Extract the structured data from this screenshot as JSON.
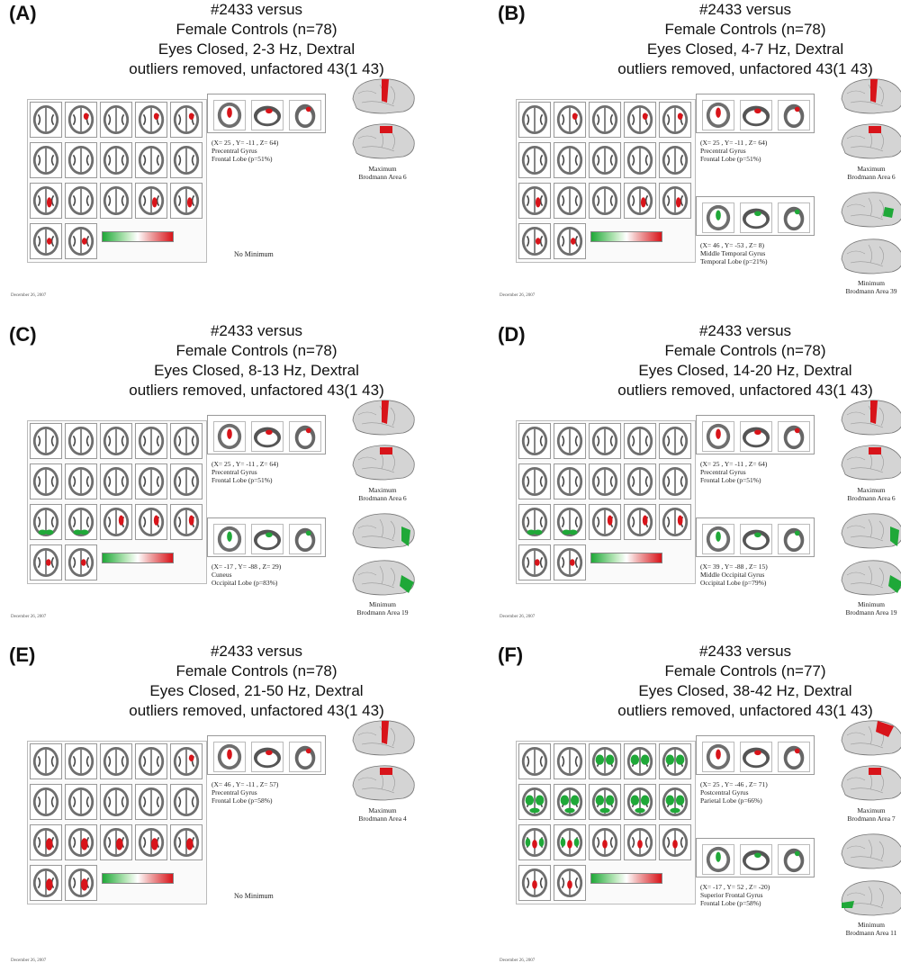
{
  "colors": {
    "activation_high": "#d8141a",
    "activation_low": "#1fa838",
    "brain_gray": "#8a8a8a"
  },
  "panels": [
    {
      "letter": "(A)",
      "title_lines": [
        "#2433 versus",
        "Female Controls (n=78)",
        "Eyes Closed, 2-3 Hz, Dextral",
        "outliers removed, unfactored 43(1 43)"
      ],
      "max": {
        "coords": "(X= 25 , Y= -11 , Z= 64)",
        "gyrus": "Precentral  Gyrus",
        "lobe": "Frontal  Lobe  (p=51%)",
        "caption1": "Maximum",
        "caption2": "Brodmann  Area 6"
      },
      "min": null,
      "no_min_text": "No Minimum",
      "date": "December 26, 2007",
      "blob": "red-few"
    },
    {
      "letter": "(B)",
      "title_lines": [
        "#2433 versus",
        "Female Controls (n=78)",
        "Eyes Closed, 4-7 Hz, Dextral",
        "outliers removed, unfactored 43(1 43)"
      ],
      "max": {
        "coords": "(X= 25 , Y= -11 , Z= 64)",
        "gyrus": "Precentral  Gyrus",
        "lobe": "Frontal  Lobe  (p=51%)",
        "caption1": "Maximum",
        "caption2": "Brodmann  Area 6"
      },
      "min": {
        "coords": "(X= 46 , Y= -53 , Z= 8)",
        "gyrus": "Middle  Temporal  Gyrus",
        "lobe": "Temporal  Lobe  (p=21%)",
        "caption1": "Minimum",
        "caption2": "Brodmann  Area 39"
      },
      "no_min_text": "",
      "date": "December 26, 2007",
      "blob": "red-few"
    },
    {
      "letter": "(C)",
      "title_lines": [
        "#2433 versus",
        "Female Controls (n=78)",
        "Eyes Closed, 8-13 Hz, Dextral",
        "outliers removed, unfactored 43(1 43)"
      ],
      "max": {
        "coords": "(X= 25 , Y= -11 , Z= 64)",
        "gyrus": "Precentral  Gyrus",
        "lobe": "Frontal  Lobe  (p=51%)",
        "caption1": "Maximum",
        "caption2": "Brodmann  Area 6"
      },
      "min": {
        "coords": "(X= -17 , Y= -88 , Z= 29)",
        "gyrus": "Cuneus",
        "lobe": "Occipital  Lobe  (p=83%)",
        "caption1": "Minimum",
        "caption2": "Brodmann  Area 19"
      },
      "no_min_text": "",
      "date": "December 26, 2007",
      "blob": "mixed"
    },
    {
      "letter": "(D)",
      "title_lines": [
        "#2433 versus",
        "Female Controls (n=78)",
        "Eyes Closed, 14-20 Hz, Dextral",
        "outliers removed, unfactored 43(1 43)"
      ],
      "max": {
        "coords": "(X= 25 , Y= -11 , Z= 64)",
        "gyrus": "Precentral  Gyrus",
        "lobe": "Frontal  Lobe  (p=51%)",
        "caption1": "Maximum",
        "caption2": "Brodmann  Area 6"
      },
      "min": {
        "coords": "(X= 39 , Y= -88 , Z= 15)",
        "gyrus": "Middle  Occipital  Gyrus",
        "lobe": "Occipital  Lobe  (p=79%)",
        "caption1": "Minimum",
        "caption2": "Brodmann  Area 19"
      },
      "no_min_text": "",
      "date": "December 26, 2007",
      "blob": "mixed"
    },
    {
      "letter": "(E)",
      "title_lines": [
        "#2433 versus",
        "Female Controls (n=78)",
        "Eyes Closed, 21-50 Hz, Dextral",
        "outliers removed, unfactored 43(1 43)"
      ],
      "max": {
        "coords": "(X= 46 , Y= -11 , Z= 57)",
        "gyrus": "Precentral  Gyrus",
        "lobe": "Frontal  Lobe  (p=58%)",
        "caption1": "Maximum",
        "caption2": "Brodmann  Area 4"
      },
      "min": null,
      "no_min_text": "No Minimum",
      "date": "December 26, 2007",
      "blob": "red-many"
    },
    {
      "letter": "(F)",
      "title_lines": [
        "#2433 versus",
        "Female Controls (n=77)",
        "Eyes Closed, 38-42 Hz, Dextral",
        "outliers removed, unfactored 43(1 43)"
      ],
      "max": {
        "coords": "(X= 25 , Y= -46 , Z= 71)",
        "gyrus": "Postcentral  Gyrus",
        "lobe": "Parietal  Lobe  (p=66%)",
        "caption1": "Maximum",
        "caption2": "Brodmann  Area 7"
      },
      "min": {
        "coords": "(X= -17 , Y= 52 , Z= -20)",
        "gyrus": "Superior  Frontal  Gyrus",
        "lobe": "Frontal  Lobe  (p=58%)",
        "caption1": "Minimum",
        "caption2": "Brodmann  Area 11"
      },
      "no_min_text": "",
      "date": "December 26, 2007",
      "blob": "green-many"
    }
  ]
}
